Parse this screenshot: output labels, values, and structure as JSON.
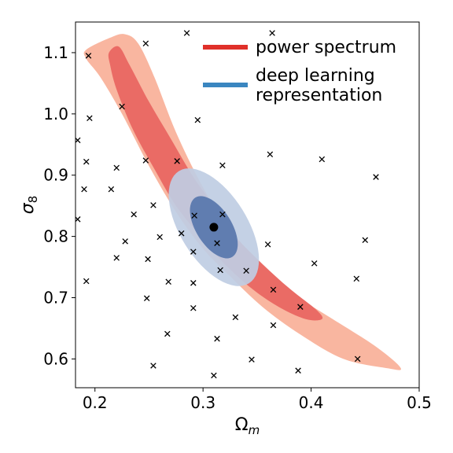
{
  "chart_data": {
    "type": "scatter",
    "xlabel": "Ω",
    "xlabel_sub": "m",
    "ylabel": "σ",
    "ylabel_sub": "8",
    "xlim": [
      0.182,
      0.5
    ],
    "ylim": [
      0.553,
      1.15
    ],
    "xticks": [
      0.2,
      0.3,
      0.4,
      0.5
    ],
    "xtick_labels": [
      "0.2",
      "0.3",
      "0.4",
      "0.5"
    ],
    "yticks": [
      0.6,
      0.7,
      0.8,
      0.9,
      1.0,
      1.1
    ],
    "ytick_labels": [
      "0.6",
      "0.7",
      "0.8",
      "0.9",
      "1.0",
      "1.1"
    ],
    "grid": false,
    "legend_position": "top-right",
    "legend": [
      {
        "label_lines": [
          "power spectrum"
        ],
        "color": "#e0302a"
      },
      {
        "label_lines": [
          "deep learning",
          "representation"
        ],
        "color": "#3a86c0"
      }
    ],
    "series": [
      {
        "name": "power spectrum",
        "kind": "contour",
        "color_outer": "#f9b6a0",
        "color_inner": "#ea6b65",
        "outer_contour": [
          [
            0.192,
            1.105
          ],
          [
            0.215,
            1.125
          ],
          [
            0.228,
            1.13
          ],
          [
            0.24,
            1.115
          ],
          [
            0.255,
            1.06
          ],
          [
            0.275,
            0.97
          ],
          [
            0.3,
            0.88
          ],
          [
            0.325,
            0.81
          ],
          [
            0.35,
            0.755
          ],
          [
            0.38,
            0.71
          ],
          [
            0.42,
            0.665
          ],
          [
            0.46,
            0.62
          ],
          [
            0.483,
            0.585
          ],
          [
            0.47,
            0.585
          ],
          [
            0.43,
            0.6
          ],
          [
            0.39,
            0.64
          ],
          [
            0.355,
            0.685
          ],
          [
            0.325,
            0.735
          ],
          [
            0.3,
            0.78
          ],
          [
            0.275,
            0.84
          ],
          [
            0.25,
            0.915
          ],
          [
            0.225,
            1.0
          ],
          [
            0.205,
            1.06
          ],
          [
            0.192,
            1.09
          ]
        ],
        "inner_contour": [
          [
            0.213,
            1.1
          ],
          [
            0.222,
            1.11
          ],
          [
            0.232,
            1.08
          ],
          [
            0.25,
            1.02
          ],
          [
            0.27,
            0.96
          ],
          [
            0.29,
            0.9
          ],
          [
            0.31,
            0.85
          ],
          [
            0.33,
            0.8
          ],
          [
            0.355,
            0.755
          ],
          [
            0.38,
            0.715
          ],
          [
            0.405,
            0.68
          ],
          [
            0.41,
            0.665
          ],
          [
            0.395,
            0.665
          ],
          [
            0.37,
            0.685
          ],
          [
            0.345,
            0.715
          ],
          [
            0.32,
            0.755
          ],
          [
            0.3,
            0.795
          ],
          [
            0.275,
            0.85
          ],
          [
            0.255,
            0.91
          ],
          [
            0.235,
            0.975
          ],
          [
            0.22,
            1.04
          ],
          [
            0.214,
            1.08
          ]
        ]
      },
      {
        "name": "deep learning representation",
        "kind": "ellipse",
        "color_outer": "#bfcde3",
        "color_inner": "#607db0",
        "center": [
          0.31,
          0.815
        ],
        "outer_half_axes": [
          0.031,
          0.108
        ],
        "inner_half_axes": [
          0.0165,
          0.057
        ],
        "rotation_deg": 32,
        "best_fit_point": [
          0.31,
          0.815
        ]
      },
      {
        "name": "samples",
        "kind": "points",
        "marker": "x",
        "points": [
          [
            0.194,
            1.095
          ],
          [
            0.247,
            1.115
          ],
          [
            0.285,
            1.132
          ],
          [
            0.364,
            1.132
          ],
          [
            0.225,
            1.012
          ],
          [
            0.195,
            0.993
          ],
          [
            0.295,
            0.99
          ],
          [
            0.184,
            0.957
          ],
          [
            0.192,
            0.922
          ],
          [
            0.22,
            0.912
          ],
          [
            0.247,
            0.924
          ],
          [
            0.276,
            0.923
          ],
          [
            0.318,
            0.916
          ],
          [
            0.362,
            0.934
          ],
          [
            0.41,
            0.926
          ],
          [
            0.46,
            0.897
          ],
          [
            0.19,
            0.877
          ],
          [
            0.215,
            0.877
          ],
          [
            0.184,
            0.828
          ],
          [
            0.236,
            0.836
          ],
          [
            0.254,
            0.851
          ],
          [
            0.292,
            0.834
          ],
          [
            0.318,
            0.836
          ],
          [
            0.228,
            0.792
          ],
          [
            0.26,
            0.799
          ],
          [
            0.28,
            0.805
          ],
          [
            0.313,
            0.789
          ],
          [
            0.36,
            0.787
          ],
          [
            0.45,
            0.794
          ],
          [
            0.22,
            0.765
          ],
          [
            0.249,
            0.763
          ],
          [
            0.291,
            0.775
          ],
          [
            0.403,
            0.756
          ],
          [
            0.192,
            0.727
          ],
          [
            0.268,
            0.726
          ],
          [
            0.291,
            0.724
          ],
          [
            0.316,
            0.745
          ],
          [
            0.34,
            0.744
          ],
          [
            0.365,
            0.713
          ],
          [
            0.442,
            0.731
          ],
          [
            0.248,
            0.699
          ],
          [
            0.291,
            0.683
          ],
          [
            0.39,
            0.685
          ],
          [
            0.33,
            0.668
          ],
          [
            0.267,
            0.641
          ],
          [
            0.313,
            0.633
          ],
          [
            0.365,
            0.655
          ],
          [
            0.254,
            0.589
          ],
          [
            0.31,
            0.573
          ],
          [
            0.345,
            0.599
          ],
          [
            0.388,
            0.581
          ],
          [
            0.443,
            0.6
          ]
        ]
      }
    ]
  }
}
